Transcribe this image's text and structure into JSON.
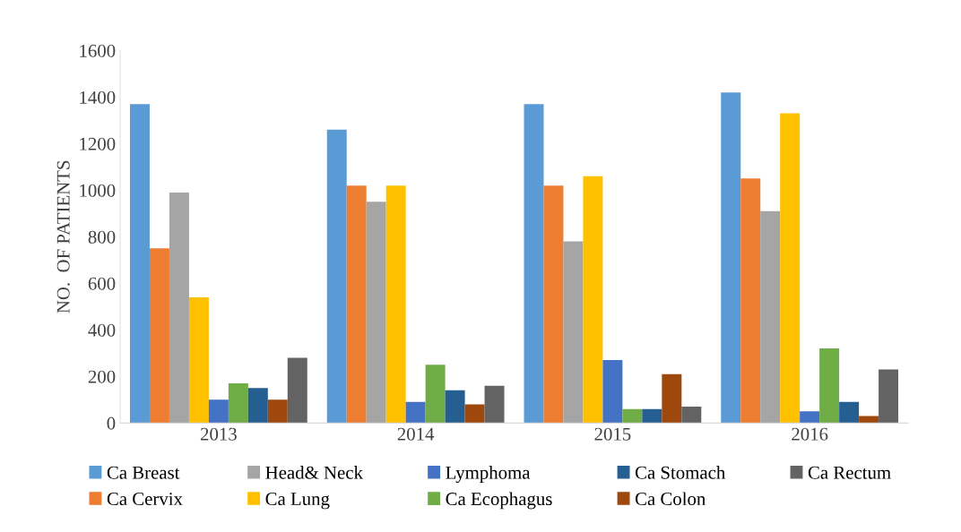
{
  "chart_data": {
    "type": "bar",
    "ylabel": "NO.  OF PATIENTS",
    "categories": [
      "2013",
      "2014",
      "2015",
      "2016"
    ],
    "series": [
      {
        "name": "Ca Breast",
        "color": "#5b9bd5",
        "values": [
          1370,
          1260,
          1370,
          1420
        ]
      },
      {
        "name": "Ca Cervix",
        "color": "#ed7d31",
        "values": [
          750,
          1020,
          1020,
          1050
        ]
      },
      {
        "name": "Head& Neck",
        "color": "#a5a5a5",
        "values": [
          990,
          950,
          780,
          910
        ]
      },
      {
        "name": "Ca Lung",
        "color": "#ffc000",
        "values": [
          540,
          1020,
          1060,
          1330
        ]
      },
      {
        "name": "Lymphoma",
        "color": "#4472c4",
        "values": [
          100,
          90,
          270,
          50
        ]
      },
      {
        "name": "Ca Ecophagus",
        "color": "#70ad47",
        "values": [
          170,
          250,
          60,
          320
        ]
      },
      {
        "name": "Ca Stomach",
        "color": "#255e91",
        "values": [
          150,
          140,
          60,
          90
        ]
      },
      {
        "name": "Ca Colon",
        "color": "#9e480e",
        "values": [
          100,
          80,
          210,
          30
        ]
      },
      {
        "name": "Ca Rectum",
        "color": "#636363",
        "values": [
          280,
          160,
          70,
          230
        ]
      }
    ],
    "ylim": [
      0,
      1600
    ],
    "yticks": [
      0,
      200,
      400,
      600,
      800,
      1000,
      1200,
      1400,
      1600
    ],
    "grid": false,
    "legend": "bottom"
  }
}
